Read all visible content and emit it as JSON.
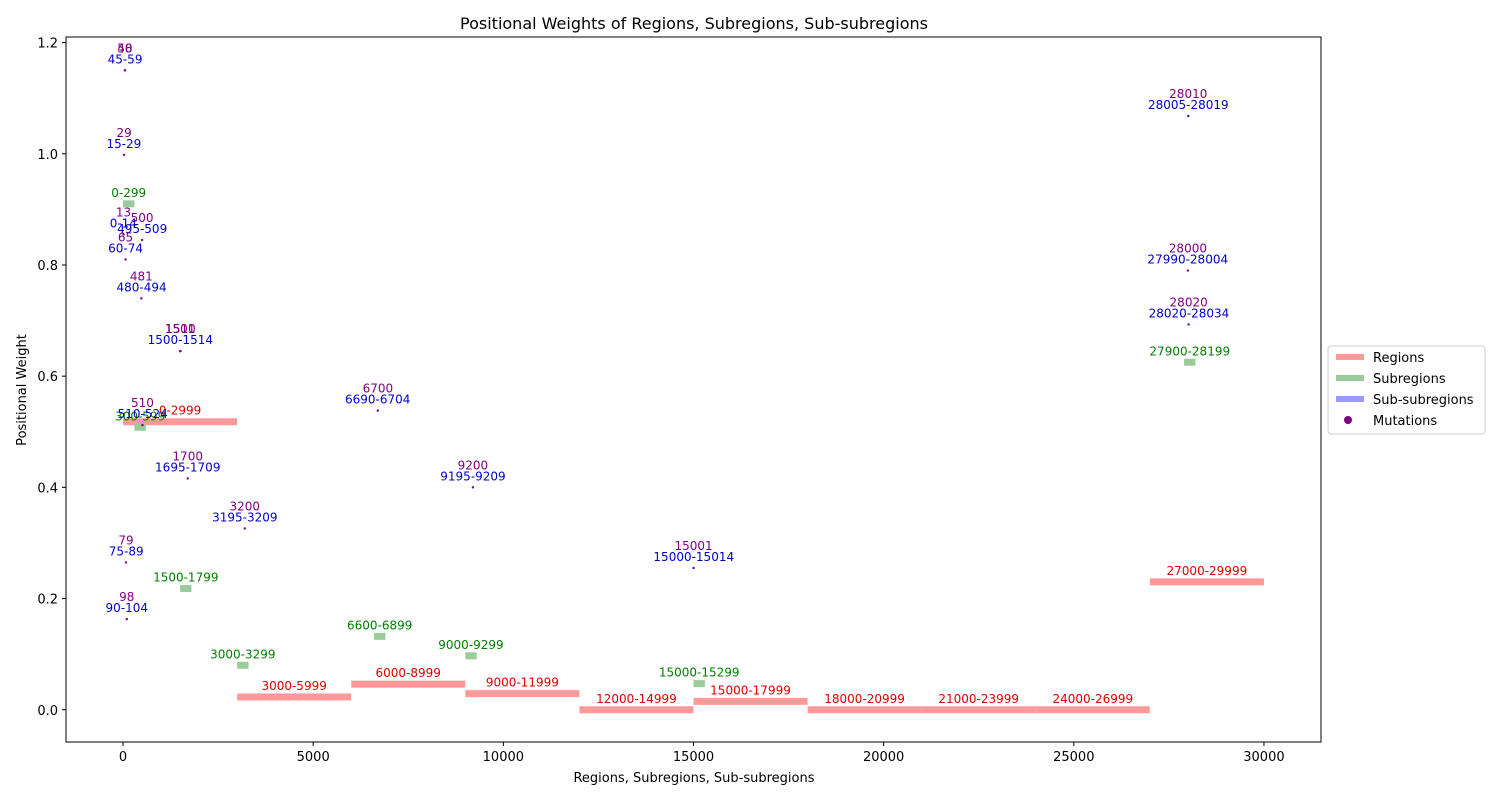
{
  "chart_data": {
    "type": "scatter",
    "title": "Positional Weights of Regions, Subregions, Sub-subregions",
    "xlabel": "Regions, Subregions, Sub-subregions",
    "ylabel": "Positional Weight",
    "xlim": [
      -1500,
      31500
    ],
    "ylim": [
      -0.058,
      1.21
    ],
    "xticks": [
      0,
      5000,
      10000,
      15000,
      20000,
      25000,
      30000
    ],
    "yticks": [
      0.0,
      0.2,
      0.4,
      0.6,
      0.8,
      1.0,
      1.2
    ],
    "legend": {
      "placement": "right-outside",
      "entries": [
        "Regions",
        "Subregions",
        "Sub-subregions",
        "Mutations"
      ]
    },
    "colors": {
      "regions": "#ff9999",
      "subregions": "#99cc99",
      "subsubregions": "#9999ff",
      "mutations": "#800080",
      "region_label": "#dd0000",
      "subregion_label": "#008000",
      "subsub_label": "#0000cc",
      "mutation_label": "#800080"
    },
    "regions": [
      {
        "start": 0,
        "end": 2999,
        "label": "0-2999",
        "y": 0.518
      },
      {
        "start": 3000,
        "end": 5999,
        "label": "3000-5999",
        "y": 0.023
      },
      {
        "start": 6000,
        "end": 8999,
        "label": "6000-8999",
        "y": 0.046
      },
      {
        "start": 9000,
        "end": 11999,
        "label": "9000-11999",
        "y": 0.029
      },
      {
        "start": 12000,
        "end": 14999,
        "label": "12000-14999",
        "y": 0.0
      },
      {
        "start": 15000,
        "end": 17999,
        "label": "15000-17999",
        "y": 0.015
      },
      {
        "start": 18000,
        "end": 20999,
        "label": "18000-20999",
        "y": 0.0
      },
      {
        "start": 21000,
        "end": 23999,
        "label": "21000-23999",
        "y": 0.0
      },
      {
        "start": 24000,
        "end": 26999,
        "label": "24000-26999",
        "y": 0.0
      },
      {
        "start": 27000,
        "end": 29999,
        "label": "27000-29999",
        "y": 0.23
      }
    ],
    "subregions": [
      {
        "start": 0,
        "end": 299,
        "label": "0-299",
        "y": 0.91
      },
      {
        "start": 300,
        "end": 599,
        "label": "300-599",
        "y": 0.508
      },
      {
        "start": 1500,
        "end": 1799,
        "label": "1500-1799",
        "y": 0.218
      },
      {
        "start": 3000,
        "end": 3299,
        "label": "3000-3299",
        "y": 0.08
      },
      {
        "start": 6600,
        "end": 6899,
        "label": "6600-6899",
        "y": 0.132
      },
      {
        "start": 9000,
        "end": 9299,
        "label": "9000-9299",
        "y": 0.097
      },
      {
        "start": 15000,
        "end": 15299,
        "label": "15000-15299",
        "y": 0.047
      },
      {
        "start": 27900,
        "end": 28199,
        "label": "27900-28199",
        "y": 0.625
      }
    ],
    "subsubregions": [
      {
        "start": 45,
        "end": 59,
        "label": "45-59",
        "y": 1.15
      },
      {
        "start": 15,
        "end": 29,
        "label": "15-29",
        "y": 0.998
      },
      {
        "start": 0,
        "end": 14,
        "label": "0-14",
        "y": 0.855
      },
      {
        "start": 495,
        "end": 509,
        "label": "495-509",
        "y": 0.845
      },
      {
        "start": 60,
        "end": 74,
        "label": "60-74",
        "y": 0.81
      },
      {
        "start": 480,
        "end": 494,
        "label": "480-494",
        "y": 0.74
      },
      {
        "start": 1500,
        "end": 1514,
        "label": "1500-1514",
        "y": 0.645
      },
      {
        "start": 510,
        "end": 524,
        "label": "510-524",
        "y": 0.512
      },
      {
        "start": 1695,
        "end": 1709,
        "label": "1695-1709",
        "y": 0.416
      },
      {
        "start": 3195,
        "end": 3209,
        "label": "3195-3209",
        "y": 0.326
      },
      {
        "start": 75,
        "end": 89,
        "label": "75-89",
        "y": 0.265
      },
      {
        "start": 90,
        "end": 104,
        "label": "90-104",
        "y": 0.163
      },
      {
        "start": 6690,
        "end": 6704,
        "label": "6690-6704",
        "y": 0.538
      },
      {
        "start": 9195,
        "end": 9209,
        "label": "9195-9209",
        "y": 0.4
      },
      {
        "start": 15000,
        "end": 15014,
        "label": "15000-15014",
        "y": 0.255
      },
      {
        "start": 28005,
        "end": 28019,
        "label": "28005-28019",
        "y": 1.068
      },
      {
        "start": 27990,
        "end": 28004,
        "label": "27990-28004",
        "y": 0.79
      },
      {
        "start": 28020,
        "end": 28034,
        "label": "28020-28034",
        "y": 0.693
      }
    ],
    "mutations": [
      {
        "x": 50,
        "label": "50",
        "y": 1.15
      },
      {
        "x": 48,
        "label": "48",
        "y": 1.15
      },
      {
        "x": 29,
        "label": "29",
        "y": 0.998
      },
      {
        "x": 13,
        "label": "13",
        "y": 0.855
      },
      {
        "x": 500,
        "label": "500",
        "y": 0.845
      },
      {
        "x": 65,
        "label": "65",
        "y": 0.81
      },
      {
        "x": 481,
        "label": "481",
        "y": 0.74
      },
      {
        "x": 1510,
        "label": "1510",
        "y": 0.645
      },
      {
        "x": 1501,
        "label": "1501",
        "y": 0.645
      },
      {
        "x": 510,
        "label": "510",
        "y": 0.512
      },
      {
        "x": 1700,
        "label": "1700",
        "y": 0.416
      },
      {
        "x": 3200,
        "label": "3200",
        "y": 0.326
      },
      {
        "x": 79,
        "label": "79",
        "y": 0.265
      },
      {
        "x": 98,
        "label": "98",
        "y": 0.163
      },
      {
        "x": 6700,
        "label": "6700",
        "y": 0.538
      },
      {
        "x": 9200,
        "label": "9200",
        "y": 0.4
      },
      {
        "x": 15001,
        "label": "15001",
        "y": 0.255
      },
      {
        "x": 28010,
        "label": "28010",
        "y": 1.068
      },
      {
        "x": 28000,
        "label": "28000",
        "y": 0.79
      },
      {
        "x": 28020,
        "label": "28020",
        "y": 0.693
      }
    ]
  }
}
